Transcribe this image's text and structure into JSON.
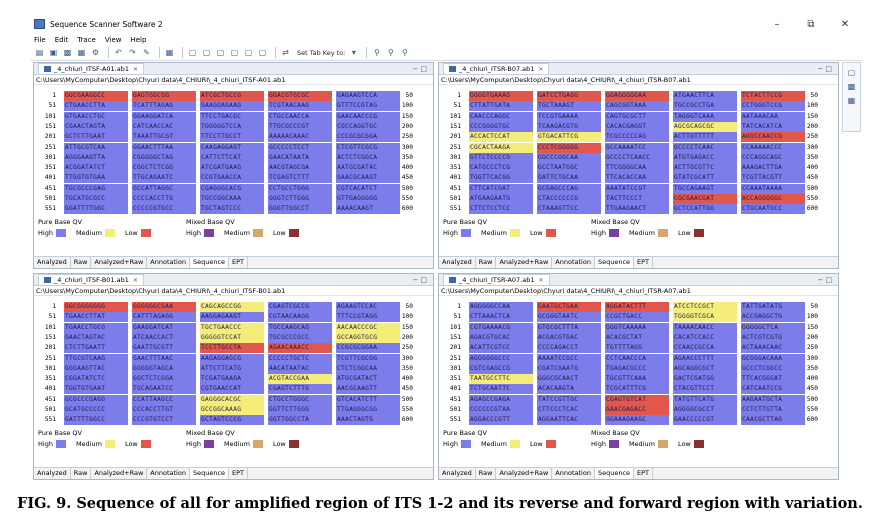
{
  "window": {
    "title": "Sequence Scanner Software 2",
    "controls": [
      "–",
      "⧉",
      "✕"
    ]
  },
  "menu": [
    "File",
    "Edit",
    "Trace",
    "View",
    "Help"
  ],
  "toolbar": {
    "set_tab_key_label": "Set Tab Key to:"
  },
  "caption": "FIG. 9. Sequence of all for amplified region of ITS 1-2 and its reverse and forward region with variation.",
  "qv": {
    "pure_title": "Pure Base QV",
    "mixed_title": "Mixed Base QV",
    "labels": [
      "High",
      "Medium",
      "Low"
    ],
    "pure_colors": [
      "#7c7cea",
      "#f5ed7a",
      "#e2574c"
    ],
    "mixed_colors": [
      "#7b3fa0",
      "#d4a86a",
      "#8a3030"
    ]
  },
  "view_tabs": [
    "Analyzed",
    "Raw",
    "Analyzed+Raw",
    "Annotation",
    "Sequence",
    "EPT"
  ],
  "panes": [
    {
      "tab": "_4_chiuri_ITSF-A01.ab1",
      "path": "C:\\Users\\MyComputer\\Desktop\\Chyuri data\\4_CHIURI\\_4_chiuri_ITSF-A01.ab1",
      "starts": [
        "1",
        "51",
        "101",
        "151",
        "201",
        "251",
        "301",
        "351",
        "401",
        "451",
        "501",
        "551"
      ],
      "ends": [
        "50",
        "100",
        "150",
        "200",
        "250",
        "300",
        "350",
        "400",
        "450",
        "500",
        "550",
        "600"
      ],
      "rows": [
        [
          "GGCGAAGGCC",
          "GAGTGGCGG",
          "ATCGCTGCCG",
          "GGACGTGCGC",
          "GAGAAGTCCA"
        ],
        [
          "CTGAACCTTA",
          "TCATTTAGAG",
          "GAAGGAGAAG",
          "TCGTAACAAG",
          "GTTTCCGTAG"
        ],
        [
          "GTGAACCTGC",
          "GGAAGGATCA",
          "TTCCTGACGC",
          "CTGCCAACCA",
          "GAACAACCCG"
        ],
        [
          "CGAACTAGTA",
          "CATCAACCAC",
          "TGGGGGTCCA",
          "TTGCGCCCGT",
          "CGCCAGGTGC"
        ],
        [
          "GCTCTTGAAT",
          "TAAATTGCGT",
          "TTCCTTGCCT",
          "AAAAACAAAC",
          "CCCGCGCGGA"
        ],
        [
          "ATTGCGTCAA",
          "GGAACTTTAA",
          "CAAGAGGAGT",
          "GCCCCCTCCT",
          "CTCGTTCGCG"
        ],
        [
          "AGGGAAGTTA",
          "CGGGGGCTAG",
          "CATTCTTCAT",
          "GAACATAATA",
          "ACTCTCGGCA"
        ],
        [
          "ACGGATATCT",
          "CGGCTCTCGG",
          "ATCGATGAAG",
          "AACGTAGCGA",
          "AATGCGATAC"
        ],
        [
          "TTGGTGTGAA",
          "TTGCAGAATC",
          "CCGTGAACCA",
          "TCGAGTCTTT",
          "GAACGCAAGT"
        ],
        [
          "TGCGCCCGAG",
          "GCCATTAGGC",
          "CGAGGGCACG",
          "CCTGCCTGGG",
          "CGTCACATCT"
        ],
        [
          "TGCATGCGCC",
          "CCCCACCTTG",
          "TGCCGGCAAA",
          "GGGTCTTGGG",
          "GTTGAGGGGG"
        ],
        [
          "GGATTTTGGC",
          "CCCCCGTGCC",
          "TGCTAGTCCC",
          "GGGTTGGCCT",
          "AAAACAAGT"
        ]
      ],
      "red": [
        [
          0,
          0
        ],
        [
          0,
          1
        ],
        [
          0,
          2
        ],
        [
          0,
          3
        ]
      ],
      "yellow": []
    },
    {
      "tab": "_4_chiuri_ITSR-B07.ab1",
      "path": "C:\\Users\\MyComputer\\Desktop\\Chyuri data\\4_CHIURI\\_4_chiuri_ITSR-B07.ab1",
      "starts": [
        "1",
        "51",
        "101",
        "151",
        "201",
        "251",
        "301",
        "351",
        "401",
        "451",
        "501",
        "551"
      ],
      "ends": [
        "50",
        "100",
        "150",
        "200",
        "250",
        "300",
        "350",
        "400",
        "450",
        "500",
        "550",
        "600"
      ],
      "rows": [
        [
          "GGGGTGAAAG",
          "GATCCTGAGG",
          "GGAGGGGGAA",
          "ATGAACTTCA",
          "TCTACTTCCG"
        ],
        [
          "CTTATTGATA",
          "TGCTAAAGT",
          "CAGCGGTAAA",
          "TGCCGCCTGA",
          "CCTGGGTCCG"
        ],
        [
          "CAACCCAGGC",
          "TCCGTGAAAA",
          "CAGTGCGCTT",
          "TAGGGTCAAA",
          "AATAAACAA"
        ],
        [
          "CCCGGGGTGC",
          "TCAAGACGTG",
          "CACACGAGGT",
          "AGCGCAGCGC",
          "TATCACATCA"
        ],
        [
          "ACCACTCCAT",
          "GTGACATTCG",
          "TCGCCCCCAG",
          "ACTTGTTTTT",
          "AGGCCAACCG"
        ],
        [
          "CGCACTAAGA",
          "CCCTCGGGGG",
          "GCCAAAATCC",
          "GCCCCTCAAC",
          "CCAAAAACCC"
        ],
        [
          "GTTCTCCCCG",
          "GGCCCGGCAA",
          "GCCCCTCAACC",
          "ATGTGAGACC",
          "CCCAGGCAGC"
        ],
        [
          "CATGCCCTCG",
          "GCCTAATGGC",
          "TTCGGGGCAA",
          "ACTTGCGTTC",
          "AAAGACTTGA"
        ],
        [
          "TGGTTCACGG",
          "GATTCTGCAA",
          "TTCACACCAA",
          "GTATCGCATT",
          "TCGTTACGTT"
        ],
        [
          "CTTCATCGAT",
          "GCGAGCCCAG",
          "AAATATCCGT",
          "TGCCAGAAGT",
          "CCAAATAAAA"
        ],
        [
          "ATGAAGAATG",
          "CTACCCCCCG",
          "TACTTCCCT",
          "CGCGAACGAT",
          "ACCAGGGGGC"
        ],
        [
          "CTTCTCCTCC",
          "CTAAAGTTCC",
          "TTGAAGAACT",
          "GCTCCATTGG",
          "CTGCAATGCC"
        ]
      ],
      "red": [
        [
          0,
          0
        ],
        [
          0,
          1
        ],
        [
          0,
          2
        ],
        [
          0,
          4
        ],
        [
          4,
          4
        ],
        [
          5,
          1
        ],
        [
          10,
          3
        ],
        [
          10,
          4
        ]
      ],
      "yellow": [
        [
          4,
          0
        ],
        [
          4,
          1
        ],
        [
          5,
          0
        ],
        [
          3,
          3
        ]
      ]
    },
    {
      "tab": "_4_chiuri_ITSF-B01.ab1",
      "path": "C:\\Users\\MyComputer\\Desktop\\Chyuri data\\4_CHIURI\\_4_chiuri_ITSF-B01.ab1",
      "starts": [
        "1",
        "51",
        "101",
        "151",
        "201",
        "251",
        "301",
        "351",
        "401",
        "451",
        "501",
        "551"
      ],
      "ends": [
        "50",
        "100",
        "150",
        "200",
        "250",
        "300",
        "350",
        "400",
        "450",
        "500",
        "550",
        "600"
      ],
      "rows": [
        [
          "GGCGGGGGGG",
          "GGGGGGCGAA",
          "CAGCAGCCGG",
          "CGAGTCGCCG",
          "AGAAGTCCAC"
        ],
        [
          "TGAACCTTAT",
          "CATTTAGAGG",
          "AAGGAGAAGT",
          "CGTAACAAGG",
          "TTTCCGTAGG"
        ],
        [
          "TGAACCTGCG",
          "GAAGGATCAT",
          "TGCTGAACCC",
          "TGCCAAGCAG",
          "AACAACCCGC"
        ],
        [
          "GAACTAGTAC",
          "ATCAACCACT",
          "GGGGGTCCAT",
          "TGCGCCCGCC",
          "GCCAGGTGCG"
        ],
        [
          "CTCTTGAATT",
          "GAATTGCGTT",
          "TCCTTGCCTA",
          "AGAACAAACC",
          "CCGCGCGGAA"
        ],
        [
          "TTGCGTCAAG",
          "GAACTTTAAC",
          "AAGAGGAGCG",
          "CCCCCTGCTC",
          "TCGTTCGCGG"
        ],
        [
          "GGGAAGTTAC",
          "GGGGGTAGCA",
          "ATTCTTCATG",
          "AACATAATAC",
          "CTCTCGGCAA"
        ],
        [
          "CGGATATCTC",
          "GGCTCTCGGA",
          "TCGATGAAGA",
          "ACGTACCGAA",
          "ATGCGATACT"
        ],
        [
          "TGGTGTGAAT",
          "TGCAGAATCC",
          "CGTGAACCAT",
          "CGAGTCTTTG",
          "AACGCAAGTT"
        ],
        [
          "GCGCCCGAGG",
          "CCATTAAGCC",
          "GAGGGCACGC",
          "CTGCCTGGGC",
          "GTCACATCTT"
        ],
        [
          "GCATGCCCCC",
          "CCCACCTTGT",
          "GCCGGCAAAG",
          "GGTTCTTGGG",
          "TTGAGGGCGG"
        ],
        [
          "GATTTTGGCC",
          "CCCGTGTCCT",
          "GCTAGTCCCG",
          "GGTTGGCCTA",
          "AAACTAGTG"
        ]
      ],
      "red": [
        [
          0,
          0
        ],
        [
          0,
          1
        ],
        [
          4,
          2
        ],
        [
          4,
          3
        ]
      ],
      "yellow": [
        [
          0,
          2
        ],
        [
          2,
          2
        ],
        [
          2,
          4
        ],
        [
          3,
          2
        ],
        [
          3,
          4
        ],
        [
          7,
          3
        ],
        [
          9,
          2
        ],
        [
          10,
          2
        ]
      ]
    },
    {
      "tab": "_4_chiuri_ITSR-A07.ab1",
      "path": "C:\\Users\\MyComputer\\Desktop\\Chyuri data\\4_CHIURI\\_4_chiuri_ITSR-A07.ab1",
      "starts": [
        "1",
        "51",
        "101",
        "151",
        "201",
        "251",
        "301",
        "351",
        "401",
        "451",
        "501",
        "551"
      ],
      "ends": [
        "50",
        "100",
        "150",
        "200",
        "250",
        "300",
        "350",
        "400",
        "450",
        "500",
        "550",
        "600"
      ],
      "rows": [
        [
          "AGGGGGCCAA",
          "GAATGCTGAA",
          "AGGATACTTT",
          "ATCCTCCGCT",
          "TATTGATATG"
        ],
        [
          "CTTAAACTCA",
          "GCGGGTAATC",
          "CCGCTGACC",
          "TGGGGTCGCA",
          "ACCGAGGCTG"
        ],
        [
          "CGTGAAAACG",
          "GTGCGCTTTA",
          "GGGTCAAAAA",
          "TAAAACAACC",
          "GGGGGCTCA"
        ],
        [
          "AGACGTGCAC",
          "ACGACGTGAC",
          "ACACGCTAT",
          "CACATCCACC",
          "ACTCGTCGTG"
        ],
        [
          "ACATTCGTCC",
          "CCCCAGACCT",
          "TGTTTTAGG",
          "CCAACCGCCA",
          "ACTAAACAAC"
        ],
        [
          "AGGGGGGCCC",
          "AAAATCCGCC",
          "CCTCAACCCA",
          "AGAACCCTTT",
          "GCGGGACAAA"
        ],
        [
          "CGTCGAGCCG",
          "CGATCGAATG",
          "TGAGACGCCC",
          "AGCAGGCGCT",
          "GCCCTCGGCC"
        ],
        [
          "TAATGCCTTC",
          "GGGCGCAACT",
          "TGCGTTCAAA",
          "GACTCGATGG",
          "TTCACGGGAT"
        ],
        [
          "TCTGCAATTC",
          "ACACAAGTA",
          "TCGCATTTCG",
          "CTACGTTCCT",
          "CATCAATCCG"
        ],
        [
          "AGAGCCGAGA",
          "TATCCGTTGC",
          "CGAGTGTCAT",
          "TATGTTCATG",
          "AAGAATGCTA"
        ],
        [
          "CCCCCCGTAA",
          "CTTCCCTCAC",
          "GAACGAGACC",
          "AGGGGCGCCT",
          "CCTCTTGTTA"
        ],
        [
          "AGGACCCGTT",
          "AGGAATTCAC",
          "GGAAAGAAGC",
          "GAACCCCCGT",
          "CAACGCTTAG"
        ]
      ],
      "red": [
        [
          0,
          1
        ],
        [
          0,
          2
        ],
        [
          9,
          2
        ],
        [
          10,
          2
        ]
      ],
      "yellow": [
        [
          0,
          3
        ],
        [
          7,
          0
        ],
        [
          1,
          3
        ]
      ]
    }
  ]
}
